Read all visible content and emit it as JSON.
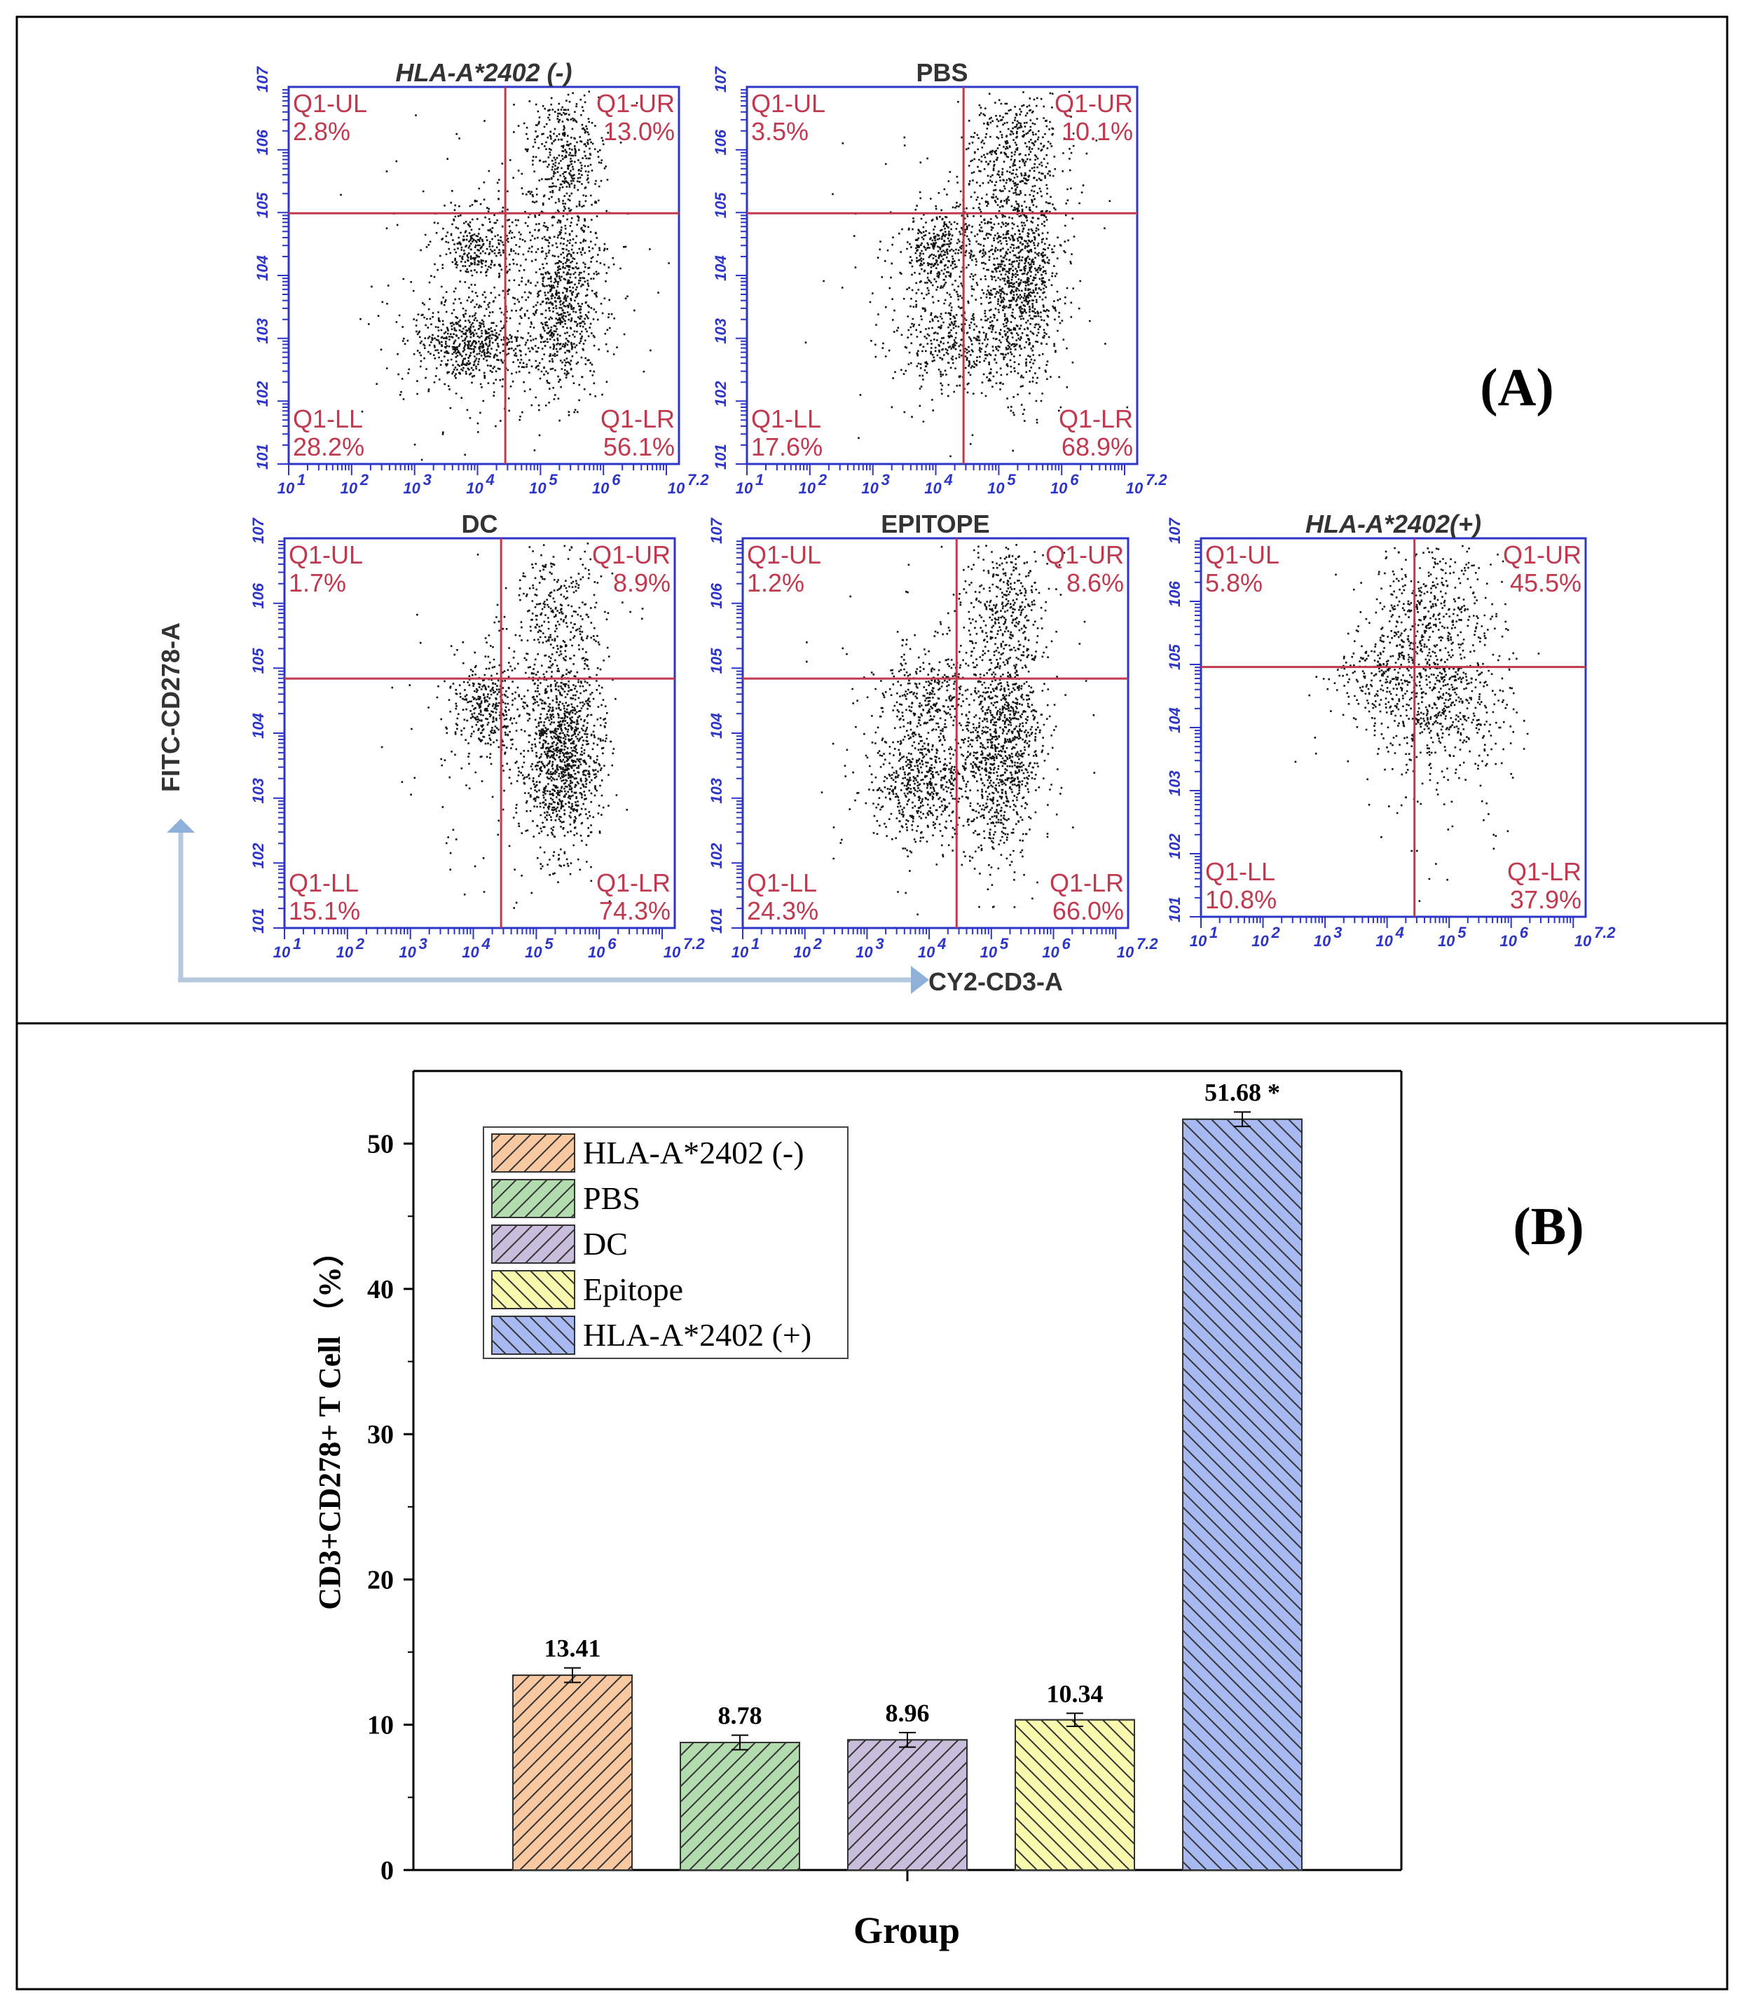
{
  "panel_a": {
    "label": "(A)",
    "y_axis_label": "FITC-CD278-A",
    "x_axis_label": "CY2-CD3-A",
    "x_ticks": [
      "10",
      "10",
      "10",
      "10",
      "10",
      "10",
      "10"
    ],
    "x_tick_exps": [
      "1",
      "2",
      "3",
      "4",
      "5",
      "6",
      "7.2"
    ],
    "y_ticks": [
      "10",
      "10",
      "10",
      "10",
      "10",
      "10",
      "10"
    ],
    "y_tick_exps": [
      "1",
      "2",
      "3",
      "4",
      "5",
      "6",
      "7"
    ],
    "plots": [
      {
        "title": "HLA-A*2402 (-)",
        "italic": true,
        "q": [
          {
            "name": "Q1-UL",
            "value": "2.8%"
          },
          {
            "name": "Q1-UR",
            "value": "13.0%"
          },
          {
            "name": "Q1-LL",
            "value": "28.2%"
          },
          {
            "name": "Q1-LR",
            "value": "56.1%"
          }
        ]
      },
      {
        "title": "PBS",
        "italic": false,
        "q": [
          {
            "name": "Q1-UL",
            "value": "3.5%"
          },
          {
            "name": "Q1-UR",
            "value": "10.1%"
          },
          {
            "name": "Q1-LL",
            "value": "17.6%"
          },
          {
            "name": "Q1-LR",
            "value": "68.9%"
          }
        ]
      },
      {
        "title": "DC",
        "italic": false,
        "q": [
          {
            "name": "Q1-UL",
            "value": "1.7%"
          },
          {
            "name": "Q1-UR",
            "value": "8.9%"
          },
          {
            "name": "Q1-LL",
            "value": "15.1%"
          },
          {
            "name": "Q1-LR",
            "value": "74.3%"
          }
        ]
      },
      {
        "title": "EPITOPE",
        "italic": false,
        "q": [
          {
            "name": "Q1-UL",
            "value": "1.2%"
          },
          {
            "name": "Q1-UR",
            "value": "8.6%"
          },
          {
            "name": "Q1-LL",
            "value": "24.3%"
          },
          {
            "name": "Q1-LR",
            "value": "66.0%"
          }
        ]
      },
      {
        "title": "HLA-A*2402(+)",
        "italic": true,
        "q": [
          {
            "name": "Q1-UL",
            "value": "5.8%"
          },
          {
            "name": "Q1-UR",
            "value": "45.5%"
          },
          {
            "name": "Q1-LL",
            "value": "10.8%"
          },
          {
            "name": "Q1-LR",
            "value": "37.9%"
          }
        ]
      }
    ]
  },
  "panel_b": {
    "label": "(B)"
  },
  "chart_data": {
    "type": "bar",
    "title": "",
    "xlabel": "Group",
    "ylabel": "CD3+CD278+ T Cell （%）",
    "ylim": [
      0,
      55
    ],
    "yticks": [
      0,
      10,
      20,
      30,
      40,
      50
    ],
    "grid": false,
    "legend_placement": "top-left",
    "categories": [
      "HLA-A*2402 (-)",
      "PBS",
      "DC",
      "Epitope",
      "HLA-A*2402 (+)"
    ],
    "values": [
      13.41,
      8.78,
      8.96,
      10.34,
      51.68
    ],
    "errors": [
      0.5,
      0.5,
      0.5,
      0.45,
      0.5
    ],
    "value_labels": [
      "13.41",
      "8.78",
      "8.96",
      "10.34",
      "51.68 *"
    ],
    "colors": [
      "#f8c8a0",
      "#b2dcae",
      "#c8bedc",
      "#fafaae",
      "#a7b9f0"
    ],
    "legend": [
      "HLA-A*2402 (-)",
      "PBS",
      "DC",
      "Epitope",
      "HLA-A*2402 (+)"
    ]
  }
}
